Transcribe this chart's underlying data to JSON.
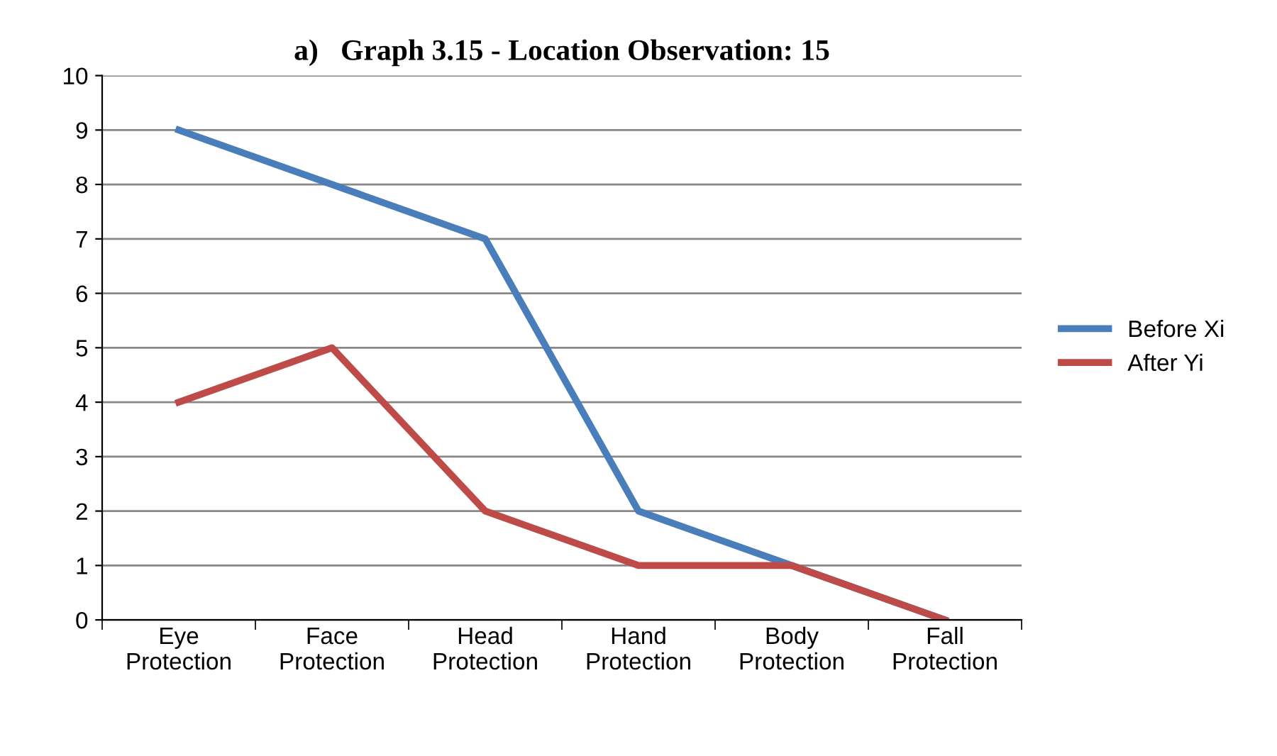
{
  "chart_data": {
    "type": "line",
    "title": "a)   Graph 3.15 - Location Observation: 15",
    "categories": [
      "Eye Protection",
      "Face Protection",
      "Head Protection",
      "Hand Protection",
      "Body Protection",
      "Fall Protection"
    ],
    "series": [
      {
        "name": "Before Xi",
        "color": "#4a7ebb",
        "values": [
          9,
          8,
          7,
          2,
          1,
          0
        ]
      },
      {
        "name": "After Yi",
        "color": "#be4b48",
        "values": [
          4,
          5,
          2,
          1,
          1,
          0
        ]
      }
    ],
    "ylim": [
      0,
      10
    ],
    "yticks": [
      0,
      1,
      2,
      3,
      4,
      5,
      6,
      7,
      8,
      9,
      10
    ],
    "grid": "y",
    "legend": "right",
    "marker": "none",
    "line_style": "solid"
  }
}
